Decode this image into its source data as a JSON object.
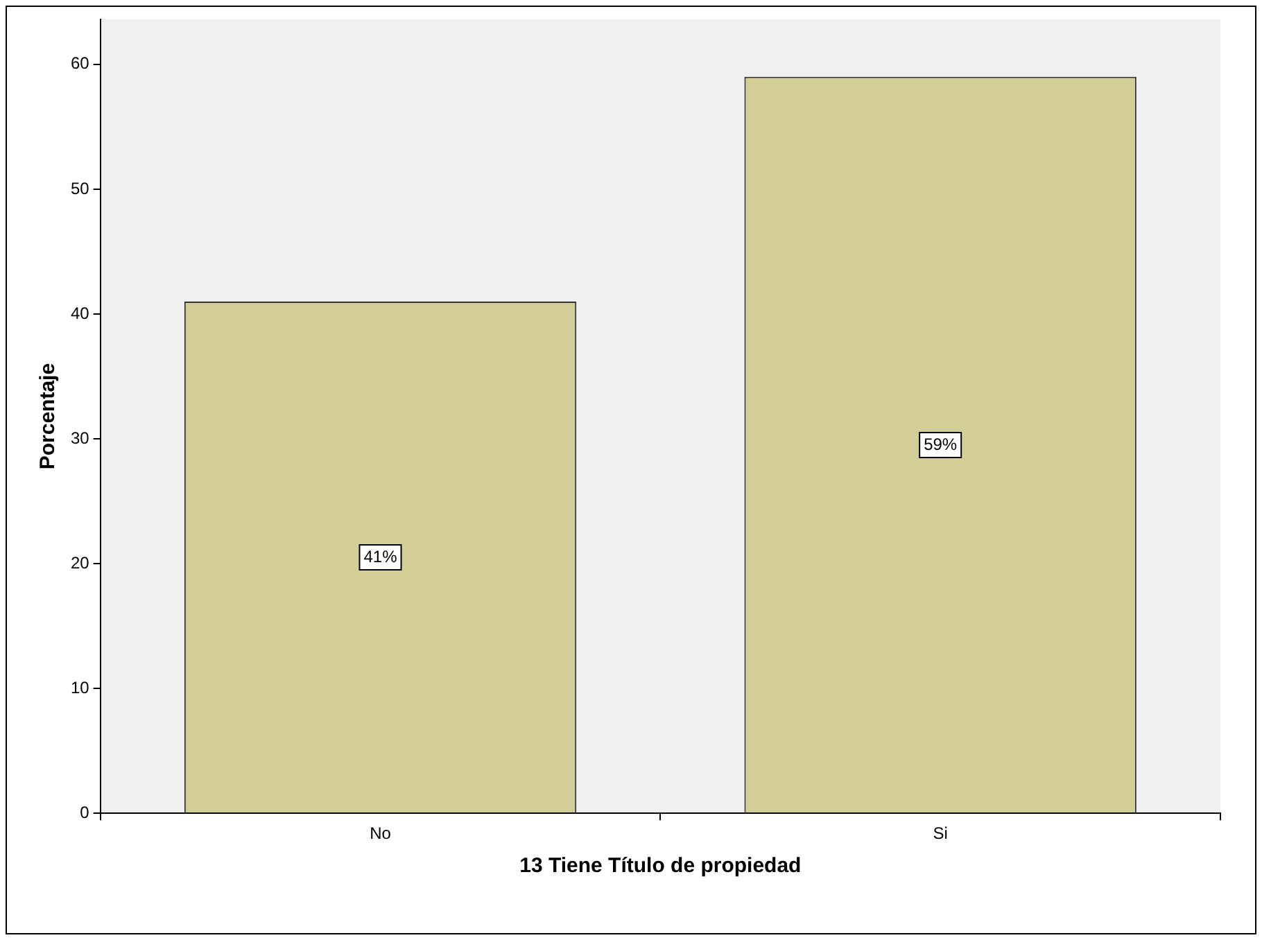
{
  "chart_data": {
    "type": "bar",
    "xlabel": "13 Tiene Título de propiedad",
    "ylabel": "Porcentaje",
    "categories": [
      "No",
      "Si"
    ],
    "values": [
      41,
      59
    ],
    "color": "#d3ce97",
    "value_labels": [
      "41%",
      "59%"
    ],
    "ylim": [
      0,
      63.6
    ],
    "yticks": [
      0,
      10,
      20,
      30,
      40,
      50,
      60
    ]
  }
}
